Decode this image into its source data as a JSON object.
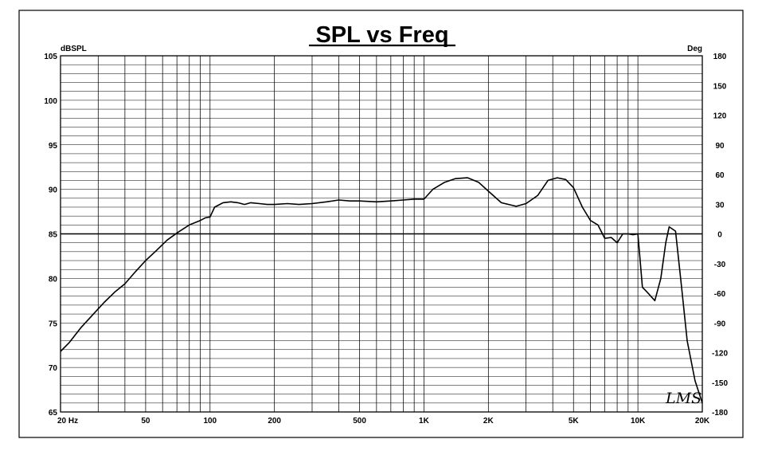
{
  "chart_data": {
    "type": "line",
    "title": "SPL vs Freq",
    "y_unit_left": "dBSPL",
    "y_unit_right": "Deg",
    "x_scale": "log",
    "xlim": [
      20,
      20000
    ],
    "ylim": [
      65,
      105
    ],
    "y2lim": [
      -180,
      180
    ],
    "grid": true,
    "x_tick_labels": [
      {
        "value": 20,
        "label": "20  Hz"
      },
      {
        "value": 50,
        "label": "50"
      },
      {
        "value": 100,
        "label": "100"
      },
      {
        "value": 200,
        "label": "200"
      },
      {
        "value": 500,
        "label": "500"
      },
      {
        "value": 1000,
        "label": "1K"
      },
      {
        "value": 2000,
        "label": "2K"
      },
      {
        "value": 5000,
        "label": "5K"
      },
      {
        "value": 10000,
        "label": "10K"
      },
      {
        "value": 20000,
        "label": "20K"
      }
    ],
    "y_tick_labels": [
      "105",
      "100",
      "95",
      "90",
      "85",
      "80",
      "75",
      "70",
      "65"
    ],
    "y2_tick_labels": [
      "180",
      "150",
      "120",
      "90",
      "60",
      "30",
      "0",
      "-30",
      "-60",
      "-90",
      "-120",
      "-150",
      "-180"
    ],
    "logo_text": "LMS",
    "series": [
      {
        "x": [
          20,
          22,
          25,
          28,
          32,
          36,
          40,
          45,
          50,
          56,
          63,
          71,
          80,
          90,
          95,
          100,
          105,
          115,
          125,
          135,
          145,
          155,
          170,
          185,
          200,
          230,
          260,
          300,
          350,
          400,
          450,
          500,
          600,
          700,
          800,
          900,
          1000,
          1100,
          1250,
          1400,
          1600,
          1800,
          2000,
          2300,
          2700,
          3000,
          3400,
          3800,
          4200,
          4600,
          5000,
          5500,
          6000,
          6500,
          7000,
          7500,
          8000,
          8500,
          9000,
          9500,
          10000,
          10500,
          11000,
          12000,
          12800,
          13500,
          14000,
          15000,
          16000,
          17000,
          18500,
          20000
        ],
        "values": [
          71.8,
          72.8,
          74.5,
          75.8,
          77.3,
          78.5,
          79.4,
          80.8,
          82.0,
          83.1,
          84.3,
          85.2,
          86.0,
          86.5,
          86.8,
          86.9,
          88.0,
          88.5,
          88.6,
          88.5,
          88.3,
          88.5,
          88.4,
          88.3,
          88.3,
          88.4,
          88.3,
          88.4,
          88.6,
          88.8,
          88.7,
          88.7,
          88.6,
          88.7,
          88.8,
          88.9,
          88.9,
          90.0,
          90.8,
          91.2,
          91.3,
          90.8,
          89.8,
          88.5,
          88.1,
          88.4,
          89.3,
          91.0,
          91.3,
          91.1,
          90.2,
          88.0,
          86.5,
          86.0,
          84.5,
          84.6,
          84.0,
          85.0,
          85.0,
          84.9,
          85.0,
          79.0,
          78.5,
          77.5,
          80.0,
          84.0,
          85.8,
          85.3,
          79.0,
          73.0,
          68.5,
          66.0
        ]
      }
    ]
  }
}
